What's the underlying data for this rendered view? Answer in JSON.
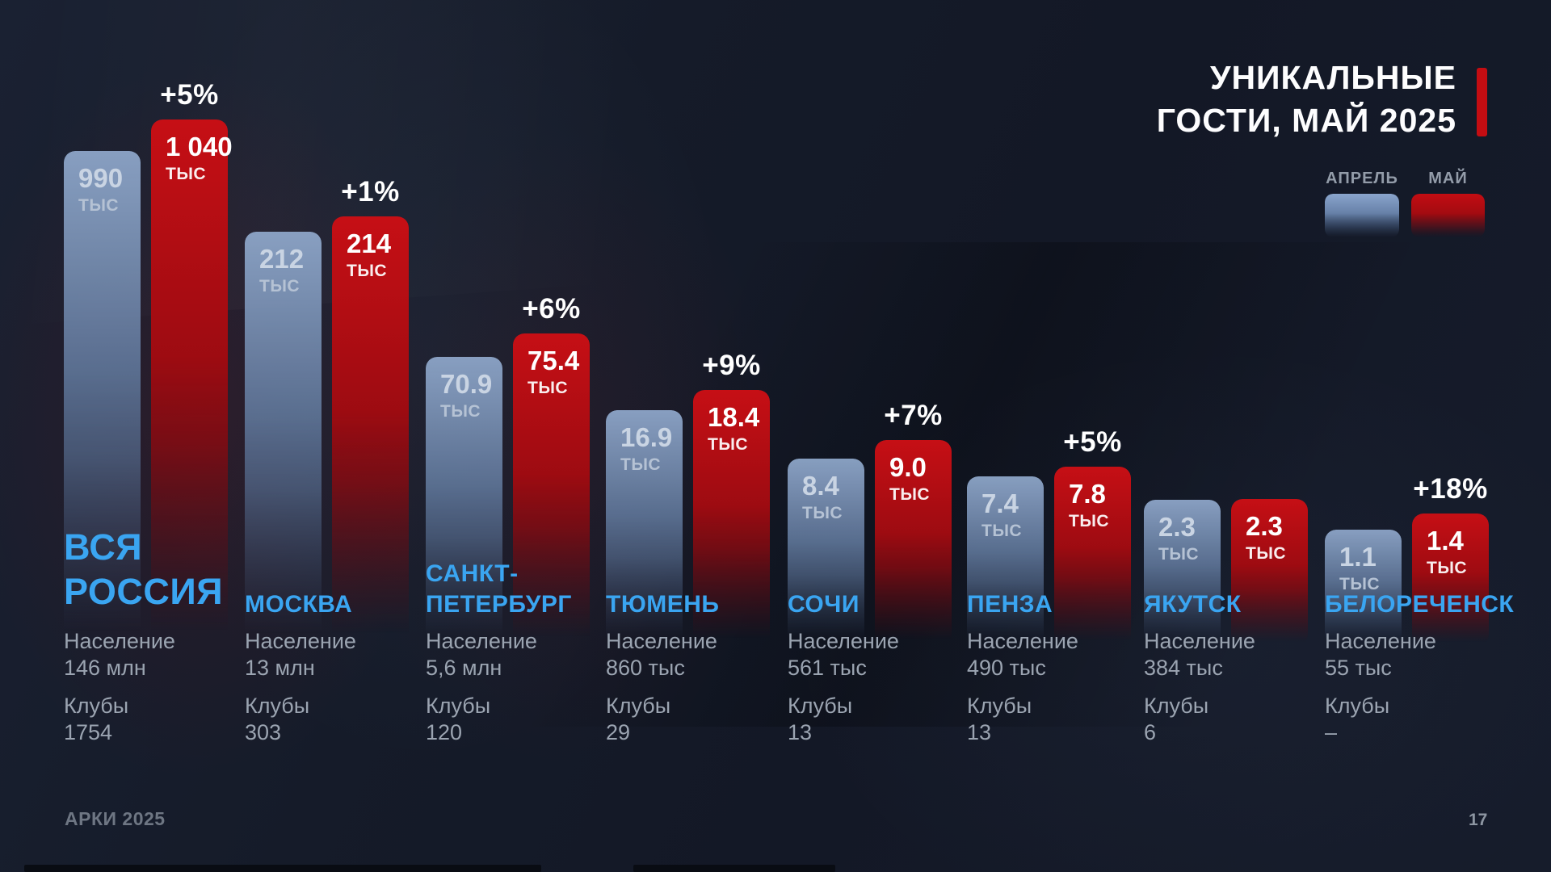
{
  "title": {
    "line1": "УНИКАЛЬНЫЕ",
    "line2": "ГОСТИ, МАЙ 2025"
  },
  "legend": {
    "april_label": "АПРЕЛЬ",
    "may_label": "МАЙ"
  },
  "footer": {
    "brand": "АРКИ 2025",
    "page": "17"
  },
  "colors": {
    "background": "#151b29",
    "april_bar_top": "#8ea6c9",
    "april_bar_bottom": "#3e5273",
    "may_bar_top": "#c60f15",
    "may_bar_bottom": "#5c070d",
    "accent_red": "#c40d12",
    "city_name_blue": "#3aa5f1",
    "info_gray": "#9ba4b1",
    "title_white": "#fdfdfe"
  },
  "chart_data": {
    "type": "bar",
    "title": "УНИКАЛЬНЫЕ ГОСТИ, МАЙ 2025",
    "unit_label": "ТЫС",
    "population_label": "Население",
    "clubs_label": "Клубы",
    "legend_position": "top-right",
    "series_names": [
      "АПРЕЛЬ",
      "МАЙ"
    ],
    "categories": [
      "ВСЯ РОССИЯ",
      "МОСКВА",
      "САНКТ-ПЕТЕРБУРГ",
      "ТЮМЕНЬ",
      "СОЧИ",
      "ПЕНЗА",
      "ЯКУТСК",
      "БЕЛОРЕЧЕНСК"
    ],
    "series": [
      {
        "name": "АПРЕЛЬ",
        "values_thousands": [
          990,
          212,
          70.9,
          16.9,
          8.4,
          7.4,
          2.3,
          1.1
        ]
      },
      {
        "name": "МАЙ",
        "values_thousands": [
          1040,
          214,
          75.4,
          18.4,
          9.0,
          7.8,
          2.3,
          1.4
        ]
      }
    ],
    "cities": [
      {
        "name": "ВСЯ РОССИЯ",
        "name_lines": [
          "ВСЯ",
          "РОССИЯ"
        ],
        "april_display": "990",
        "may_display": "1 040",
        "delta": "+5%",
        "population": "146 млн",
        "clubs": "1754"
      },
      {
        "name": "МОСКВА",
        "name_lines": [
          "МОСКВА"
        ],
        "april_display": "212",
        "may_display": "214",
        "delta": "+1%",
        "population": "13 млн",
        "clubs": "303"
      },
      {
        "name": "САНКТ-ПЕТЕРБУРГ",
        "name_lines": [
          "САНКТ-",
          "ПЕТЕРБУРГ"
        ],
        "april_display": "70.9",
        "may_display": "75.4",
        "delta": "+6%",
        "population": "5,6 млн",
        "clubs": "120"
      },
      {
        "name": "ТЮМЕНЬ",
        "name_lines": [
          "ТЮМЕНЬ"
        ],
        "april_display": "16.9",
        "may_display": "18.4",
        "delta": "+9%",
        "population": "860 тыс",
        "clubs": "29"
      },
      {
        "name": "СОЧИ",
        "name_lines": [
          "СОЧИ"
        ],
        "april_display": "8.4",
        "may_display": "9.0",
        "delta": "+7%",
        "population": "561 тыс",
        "clubs": "13"
      },
      {
        "name": "ПЕНЗА",
        "name_lines": [
          "ПЕНЗА"
        ],
        "april_display": "7.4",
        "may_display": "7.8",
        "delta": "+5%",
        "population": "490 тыс",
        "clubs": "13"
      },
      {
        "name": "ЯКУТСК",
        "name_lines": [
          "ЯКУТСК"
        ],
        "april_display": "2.3",
        "may_display": "2.3",
        "delta": null,
        "population": "384 тыс",
        "clubs": "6"
      },
      {
        "name": "БЕЛОРЕЧЕНСК",
        "name_lines": [
          "БЕЛОРЕЧЕНСК"
        ],
        "april_display": "1.1",
        "may_display": "1.4",
        "delta": "+18%",
        "population": "55 тыс",
        "clubs": "–"
      }
    ]
  }
}
